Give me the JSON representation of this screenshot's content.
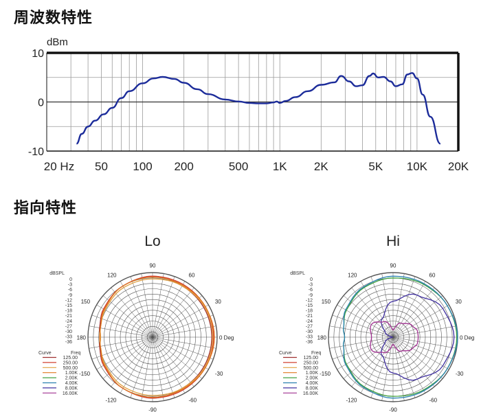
{
  "sections": {
    "frequency_title": "周波数特性",
    "directivity_title": "指向特性"
  },
  "colors": {
    "response_line": "#1c2c9a",
    "frame": "#111111",
    "grid": "#9a9a9a",
    "polar_grid": "#555555"
  },
  "chart_data": [
    {
      "type": "line",
      "scale": "log-x",
      "ylabel": "dBm",
      "ylim": [
        -10,
        10
      ],
      "xlim": [
        20,
        20000
      ],
      "x_ticks": [
        20,
        50,
        100,
        200,
        500,
        1000,
        2000,
        5000,
        10000,
        20000
      ],
      "x_tick_labels": [
        "20 Hz",
        "50",
        "100",
        "200",
        "500",
        "1K",
        "2K",
        "5K",
        "10K",
        "20K"
      ],
      "y_ticks": [
        10,
        0,
        -10
      ],
      "y_tick_labels": [
        "10",
        "0",
        "-10"
      ],
      "grid": true,
      "series": [
        {
          "x": [
            33,
            36,
            40,
            45,
            52,
            60,
            70,
            80,
            100,
            120,
            140,
            170,
            200,
            250,
            300,
            400,
            500,
            600,
            700,
            800,
            900,
            950,
            1000,
            1100,
            1300,
            1600,
            2000,
            2500,
            2800,
            3200,
            3600,
            4000,
            4500,
            4800,
            5200,
            5700,
            6400,
            7000,
            7800,
            8500,
            9200,
            10000,
            11000,
            12500,
            14800
          ],
          "y": [
            -8.5,
            -6.5,
            -5.0,
            -3.8,
            -2.5,
            -1.2,
            0.8,
            2.2,
            3.8,
            4.8,
            5.1,
            4.7,
            3.9,
            2.6,
            1.6,
            0.5,
            0.1,
            -0.2,
            -0.3,
            -0.3,
            -0.1,
            0.1,
            -0.2,
            0.2,
            1.0,
            2.2,
            3.5,
            4.0,
            5.3,
            4.2,
            3.2,
            3.4,
            5.3,
            5.8,
            5.0,
            5.1,
            4.2,
            3.2,
            3.6,
            5.6,
            5.9,
            4.8,
            1.5,
            -3.0,
            -8.5
          ]
        }
      ]
    },
    {
      "type": "polar",
      "title": "Lo",
      "rlabel": "dBSPL",
      "r_tick_labels": [
        "0",
        "-3",
        "-6",
        "-9",
        "-12",
        "-15",
        "-18",
        "-21",
        "-24",
        "-27",
        "-30",
        "-33",
        "-36"
      ],
      "angle_labels": [
        "0 Deg",
        "30",
        "60",
        "90",
        "120",
        "150",
        "180",
        "-150",
        "-120",
        "-90",
        "-60",
        "-30"
      ],
      "legend_header": [
        "Curve",
        "Freq"
      ],
      "legend": [
        {
          "freq": "125.00",
          "color": "#a03030"
        },
        {
          "freq": "250.00",
          "color": "#d04030"
        },
        {
          "freq": "500.00",
          "color": "#e0a040"
        },
        {
          "freq": "1.00K",
          "color": "#e07820"
        },
        {
          "freq": "2.00K",
          "color": "#40a040"
        },
        {
          "freq": "4.00K",
          "color": "#2a80b0"
        },
        {
          "freq": "8.00K",
          "color": "#4030a0"
        },
        {
          "freq": "16.00K",
          "color": "#a03090"
        }
      ],
      "curves": [
        {
          "color": "#a03030",
          "angles": [
            0,
            30,
            60,
            90,
            120,
            150,
            170,
            180
          ],
          "db": [
            -3,
            -3,
            -3,
            -2,
            -3,
            -4.5,
            -6,
            -7
          ]
        },
        {
          "color": "#d04030",
          "angles": [
            0,
            30,
            60,
            90,
            120,
            150,
            170,
            180
          ],
          "db": [
            -2,
            -2,
            -2,
            -2,
            -3,
            -4.5,
            -6.5,
            -7
          ]
        },
        {
          "color": "#e0a040",
          "angles": [
            0,
            30,
            60,
            90,
            120,
            150,
            170,
            180
          ],
          "db": [
            -2.5,
            -2.5,
            -3,
            -3.5,
            -4,
            -5.5,
            -6.5,
            -7
          ]
        },
        {
          "color": "#e07820",
          "angles": [
            0,
            30,
            60,
            90,
            120,
            150,
            170,
            180
          ],
          "db": [
            -1.5,
            -2,
            -2.5,
            -2.5,
            -3,
            -5,
            -6.5,
            -6.5
          ]
        }
      ]
    },
    {
      "type": "polar",
      "title": "Hi",
      "rlabel": "dBSPL",
      "r_tick_labels": [
        "0",
        "-3",
        "-6",
        "-9",
        "-12",
        "-15",
        "-18",
        "-21",
        "-24",
        "-27",
        "-30",
        "-33",
        "-36"
      ],
      "angle_labels": [
        "0 Deg",
        "30",
        "60",
        "90",
        "120",
        "150",
        "180",
        "-150",
        "-120",
        "-90",
        "-60",
        "-30"
      ],
      "legend_header": [
        "Curve",
        "Freq"
      ],
      "legend": [
        {
          "freq": "125.00",
          "color": "#a03030"
        },
        {
          "freq": "250.00",
          "color": "#d04030"
        },
        {
          "freq": "500.00",
          "color": "#e0a040"
        },
        {
          "freq": "1.00K",
          "color": "#e07820"
        },
        {
          "freq": "2.00K",
          "color": "#40a040"
        },
        {
          "freq": "4.00K",
          "color": "#2a80b0"
        },
        {
          "freq": "8.00K",
          "color": "#4030a0"
        },
        {
          "freq": "16.00K",
          "color": "#a03090"
        }
      ],
      "curves": [
        {
          "color": "#40a040",
          "angles": [
            0,
            30,
            60,
            90,
            120,
            150,
            170,
            180
          ],
          "db": [
            -0.5,
            -1,
            -2,
            -3,
            -4,
            -6,
            -8,
            -9
          ]
        },
        {
          "color": "#2a80b0",
          "angles": [
            0,
            30,
            60,
            90,
            120,
            150,
            170,
            180
          ],
          "db": [
            0,
            -1,
            -1.5,
            -2,
            -3.5,
            -5.5,
            -8,
            -9
          ]
        },
        {
          "color": "#4030a0",
          "angles": [
            0,
            30,
            60,
            90,
            120,
            150,
            170,
            180
          ],
          "db": [
            -2,
            -4,
            -9,
            -16,
            -24,
            -31,
            -35,
            -36
          ]
        },
        {
          "color": "#a03090",
          "angles": [
            0,
            15,
            30,
            60,
            90,
            120,
            150,
            180
          ],
          "db": [
            -22,
            -22,
            -23.5,
            -27,
            -32,
            -26,
            -22,
            -24
          ]
        }
      ]
    }
  ]
}
